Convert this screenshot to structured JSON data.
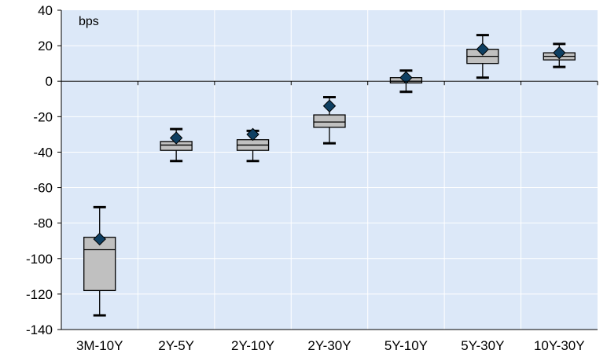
{
  "chart_data": {
    "type": "box",
    "unit_label": "bps",
    "ylim": [
      -140,
      40
    ],
    "y_ticks": [
      40,
      20,
      0,
      -20,
      -40,
      -60,
      -80,
      -100,
      -120,
      -140
    ],
    "grid": true,
    "categories": [
      "3M-10Y",
      "2Y-5Y",
      "2Y-10Y",
      "2Y-30Y",
      "5Y-10Y",
      "5Y-30Y",
      "10Y-30Y"
    ],
    "boxes": [
      {
        "min": -132,
        "q1": -118,
        "median": -95,
        "q3": -88,
        "max": -71,
        "marker": -89
      },
      {
        "min": -45,
        "q1": -39,
        "median": -36,
        "q3": -34,
        "max": -27,
        "marker": -32
      },
      {
        "min": -45,
        "q1": -39,
        "median": -36,
        "q3": -33,
        "max": -28,
        "marker": -30
      },
      {
        "min": -35,
        "q1": -26,
        "median": -23,
        "q3": -19,
        "max": -9,
        "marker": -14
      },
      {
        "min": -6,
        "q1": -1,
        "median": 0,
        "q3": 2,
        "max": 6,
        "marker": 2
      },
      {
        "min": 2,
        "q1": 10,
        "median": 14,
        "q3": 18,
        "max": 26,
        "marker": 18
      },
      {
        "min": 8,
        "q1": 12,
        "median": 14,
        "q3": 16,
        "max": 21,
        "marker": 16
      }
    ],
    "colors": {
      "plot_bg": "#dce8f8",
      "grid": "#ffffff",
      "box_fill": "#c0c0c0",
      "box_stroke": "#000000",
      "marker_fill": "#0e3f62",
      "axis": "#000000"
    }
  }
}
